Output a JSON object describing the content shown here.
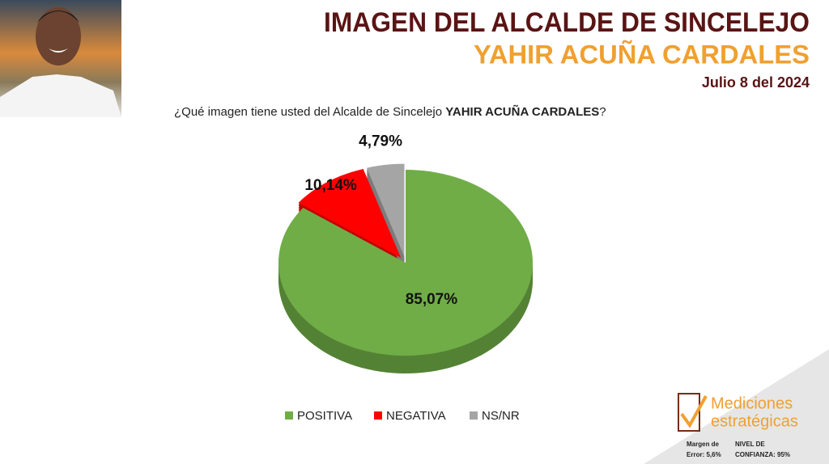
{
  "chart_data": {
    "type": "pie",
    "title": "IMAGEN DEL ALCALDE DE SINCELEJO",
    "subtitle": "YAHIR ACUÑA CARDALES",
    "date": "Julio 8 del 2024",
    "question": [
      "¿Qué imagen tiene usted del Alcalde de Sincelejo",
      "YAHIR ACUÑA CARDALES",
      "?"
    ],
    "categories": [
      "POSITIVA",
      "NEGATIVA",
      "NS/NR"
    ],
    "values": [
      85.07,
      10.14,
      4.79
    ],
    "value_labels": [
      "85,07%",
      "10,14%",
      "4,79%"
    ],
    "colors": [
      "#70ad47",
      "#ff0000",
      "#a5a5a5"
    ]
  },
  "logo": {
    "line1": "Mediciones",
    "line2": "estratégicas"
  },
  "footnotes": [
    "Margen de",
    "Error: 5,6%",
    "NIVEL DE",
    "CONFIANZA: 95%"
  ]
}
